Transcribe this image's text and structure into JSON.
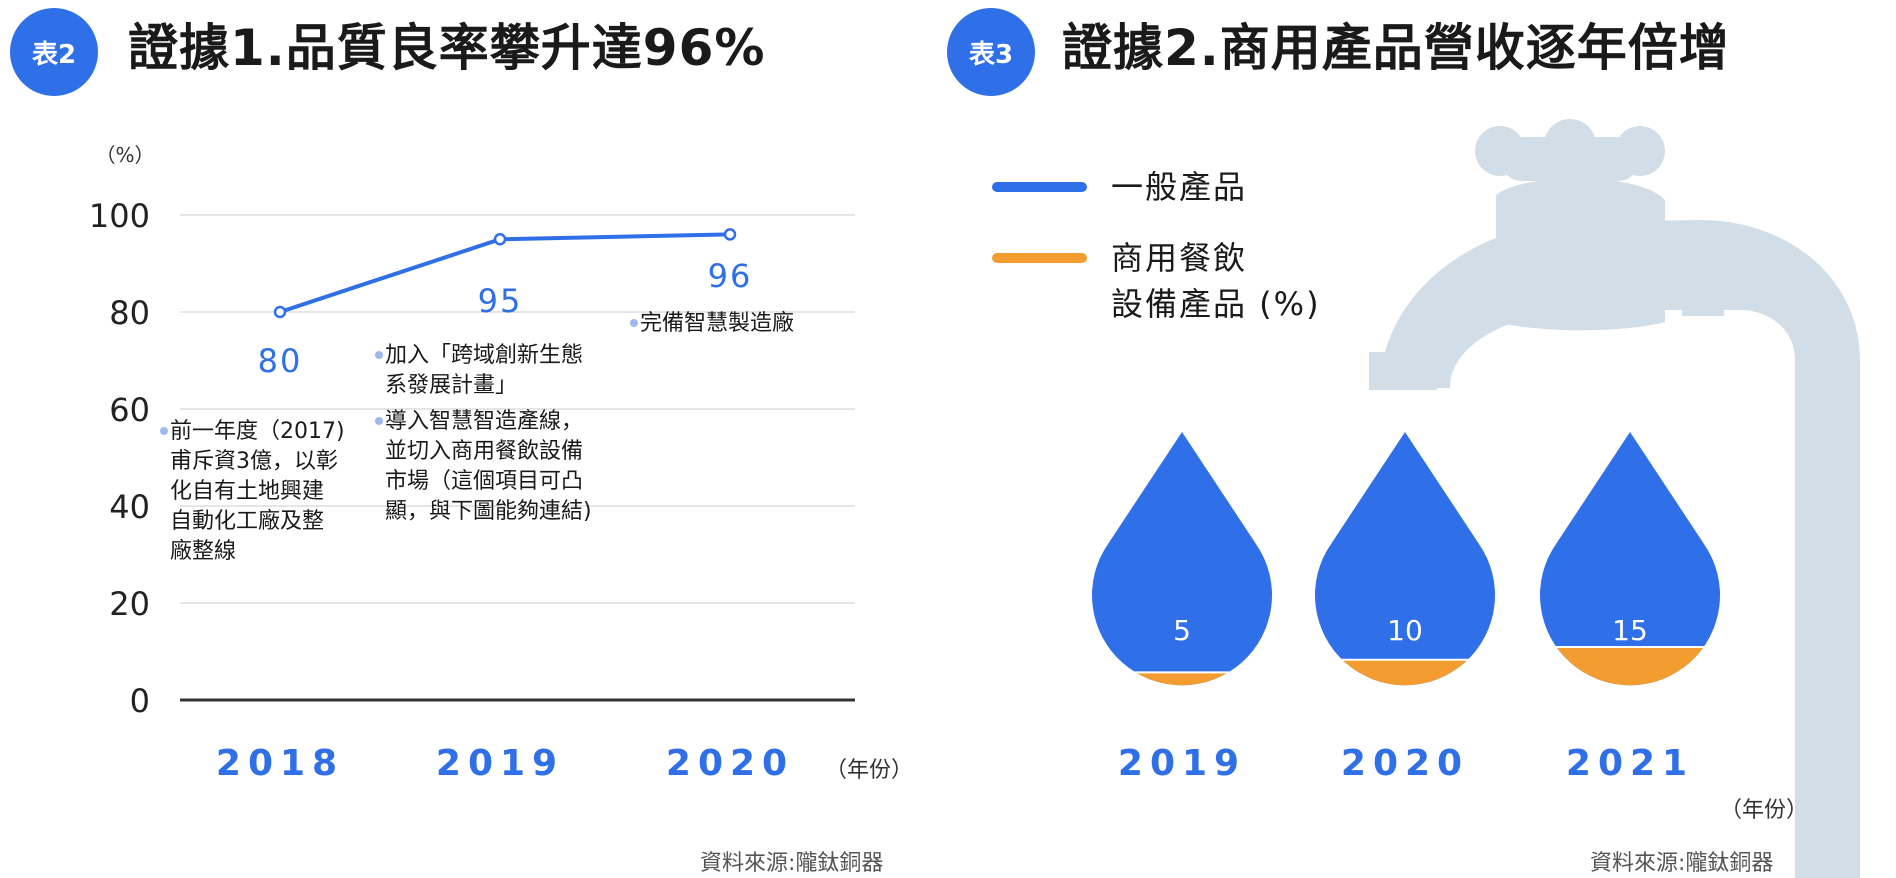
{
  "left": {
    "badge": "表2",
    "title": "證據1.品質良率攀升達96%",
    "source": "資料來源:隴鈦銅器",
    "year_unit": "（年份）"
  },
  "right": {
    "badge": "表3",
    "title": "證據2.商用產品營收逐年倍增",
    "source": "資料來源:隴鈦銅器",
    "year_unit": "（年份）",
    "legend": [
      {
        "lines": [
          "一般產品"
        ],
        "color": "#2F6FE8"
      },
      {
        "lines": [
          "商用餐飲",
          "設備產品 (%)"
        ],
        "color": "#F39C2F"
      }
    ]
  },
  "chart_data": [
    {
      "type": "line",
      "ylabel": "（%）",
      "ylim": [
        0,
        100
      ],
      "yticks": [
        0,
        20,
        40,
        60,
        80,
        100
      ],
      "categories": [
        "2018",
        "2019",
        "2020"
      ],
      "values": [
        80,
        95,
        96
      ],
      "value_labels": [
        "80",
        "95",
        "96"
      ],
      "grid": true,
      "line_color": "#2F6FE8",
      "annotations": [
        {
          "x": "2018",
          "lines": [
            "前一年度（2017)",
            "甫斥資3億，以彰",
            "化自有土地興建",
            "自動化工廠及整",
            "廠整線"
          ]
        },
        {
          "x": "2019",
          "lines": [
            "加入「跨域創新生態",
            "系發展計畫」"
          ]
        },
        {
          "x": "2019",
          "lines": [
            "導入智慧智造產線，",
            "並切入商用餐飲設備",
            "市場（這個項目可凸",
            "顯，與下圖能夠連結)"
          ]
        },
        {
          "x": "2020",
          "lines": [
            "完備智慧製造廠"
          ]
        }
      ]
    },
    {
      "type": "area",
      "categories": [
        "2019",
        "2020",
        "2021"
      ],
      "values": [
        5,
        10,
        15
      ],
      "value_labels": [
        "5",
        "10",
        "15"
      ],
      "ylim": [
        0,
        100
      ],
      "fill_color": "#F39C2F",
      "base_color": "#2F6FE8"
    }
  ]
}
